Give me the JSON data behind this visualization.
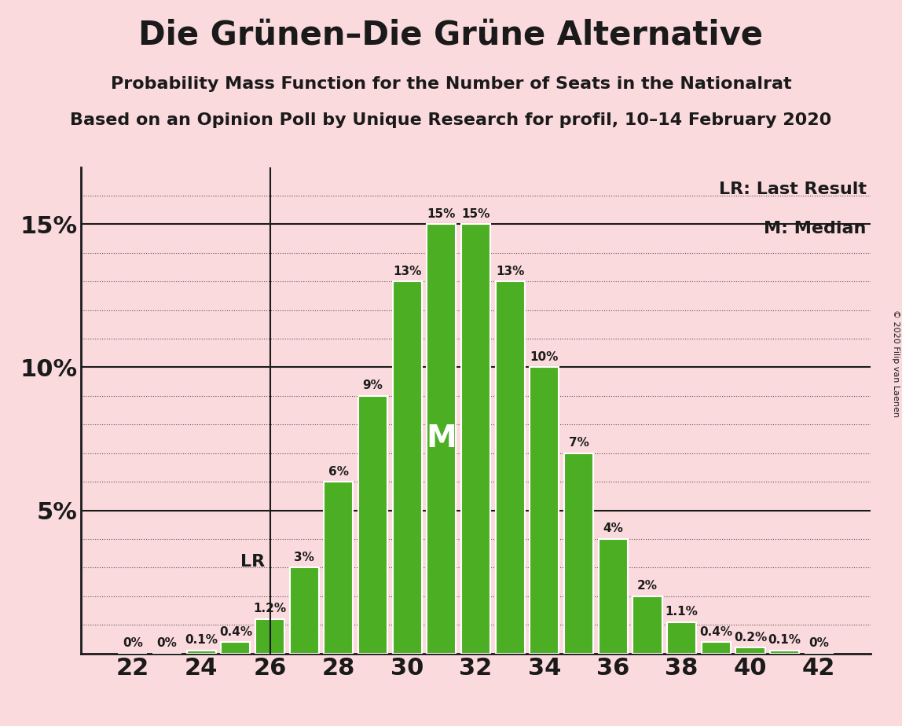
{
  "title": "Die Grünen–Die Grüne Alternative",
  "subtitle1": "Probability Mass Function for the Number of Seats in the Nationalrat",
  "subtitle2": "Based on an Opinion Poll by Unique Research for profil, 10–14 February 2020",
  "copyright": "© 2020 Filip van Laenen",
  "legend_lr": "LR: Last Result",
  "legend_m": "M: Median",
  "background_color": "#fadadd",
  "bar_color": "#4caf23",
  "bar_edge_color": "#ffffff",
  "axis_color": "#1a1a1a",
  "text_color": "#1a1a1a",
  "categories": [
    22,
    23,
    24,
    25,
    26,
    27,
    28,
    29,
    30,
    31,
    32,
    33,
    34,
    35,
    36,
    37,
    38,
    39,
    40,
    41,
    42
  ],
  "values": [
    0.0,
    0.0,
    0.1,
    0.4,
    1.2,
    3.0,
    6.0,
    9.0,
    13.0,
    15.0,
    15.0,
    13.0,
    10.0,
    7.0,
    4.0,
    2.0,
    1.1,
    0.4,
    0.2,
    0.1,
    0.0
  ],
  "bar_labels": [
    "0%",
    "0%",
    "0.1%",
    "0.4%",
    "1.2%",
    "3%",
    "6%",
    "9%",
    "13%",
    "15%",
    "15%",
    "13%",
    "10%",
    "7%",
    "4%",
    "2%",
    "1.1%",
    "0.4%",
    "0.2%",
    "0.1%",
    "0%"
  ],
  "lr_seat": 26,
  "median_seat": 31,
  "ylim": [
    0,
    17
  ],
  "title_fontsize": 30,
  "subtitle_fontsize": 16,
  "tick_fontsize": 22,
  "label_fontsize": 11,
  "legend_fontsize": 16
}
